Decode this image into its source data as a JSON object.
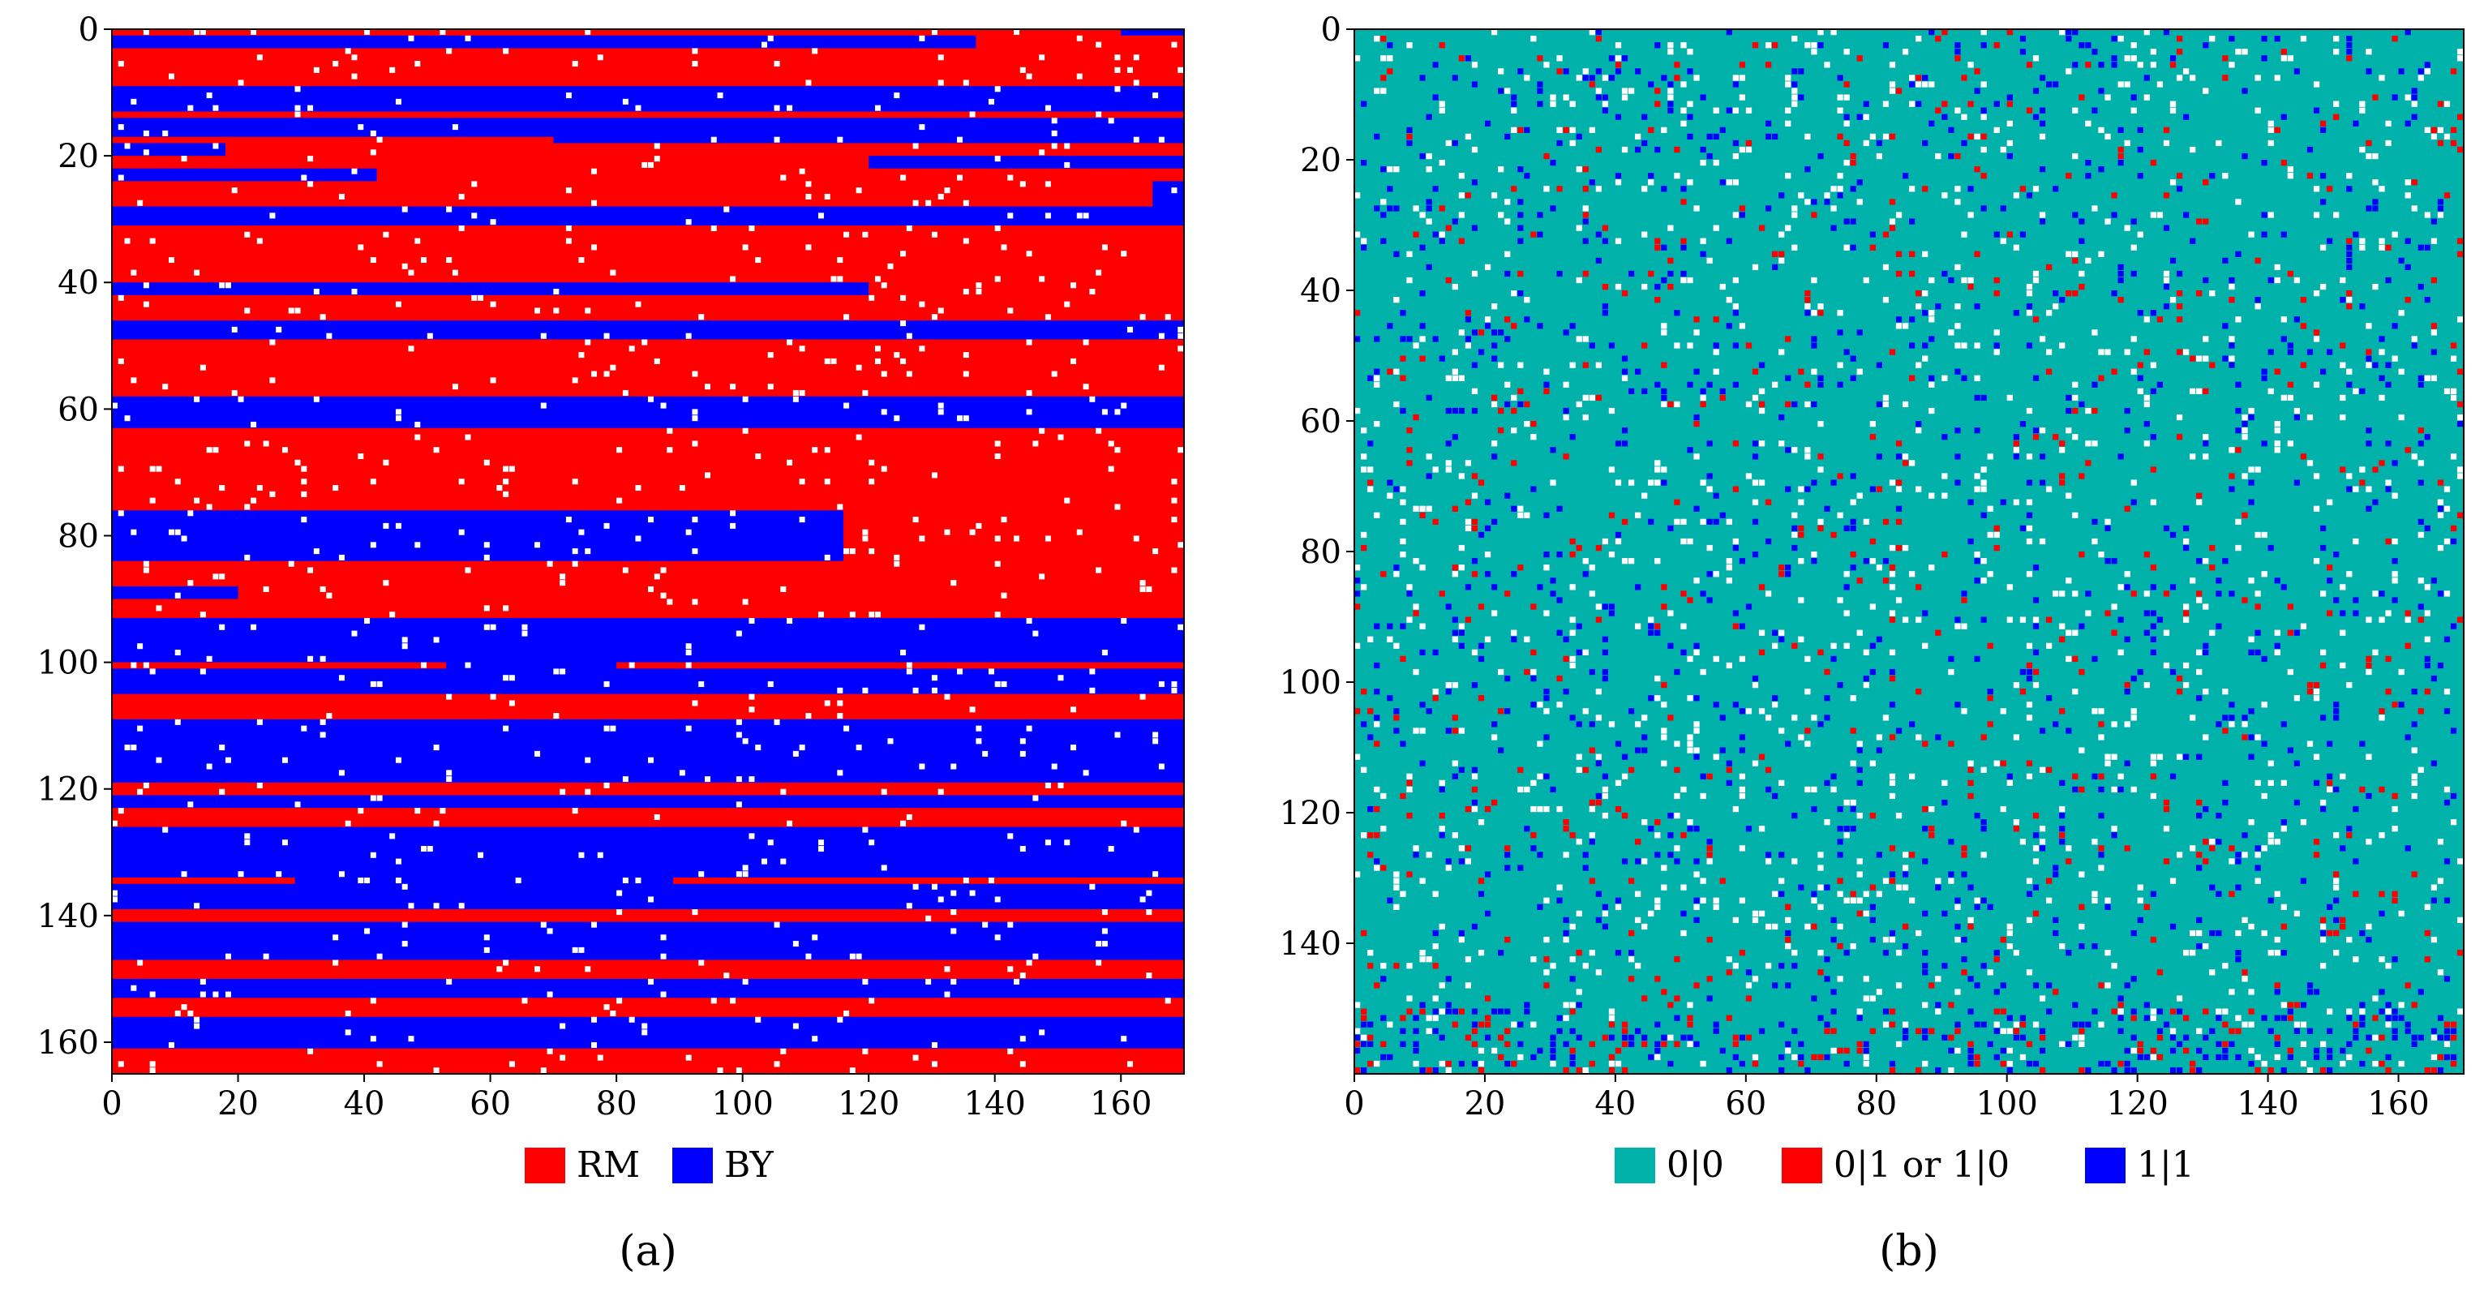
{
  "chart_data": [
    {
      "type": "heatmap",
      "panel": "a",
      "caption": "(a)",
      "title": "",
      "xlabel": "",
      "ylabel": "",
      "xlim": [
        0,
        170
      ],
      "ylim": [
        0,
        165
      ],
      "y_inverted": true,
      "x_ticks": [
        0,
        20,
        40,
        60,
        80,
        100,
        120,
        140,
        160
      ],
      "y_ticks": [
        0,
        20,
        40,
        60,
        80,
        100,
        120,
        140,
        160
      ],
      "colors": {
        "RM": "#ff0000",
        "BY": "#0000ff",
        "missing": "#ffffff"
      },
      "legend": [
        {
          "label": "RM",
          "color": "#ff0000"
        },
        {
          "label": "BY",
          "color": "#0000ff"
        }
      ],
      "legend_position": "bottom-center",
      "missing_fraction": 0.03,
      "bands": [
        {
          "y0": 0,
          "y1": 1,
          "breaks": [
            {
              "x": 160,
              "value": "BY"
            }
          ],
          "start": "RM"
        },
        {
          "y0": 1,
          "y1": 3,
          "breaks": [
            {
              "x": 137,
              "value": "RM"
            }
          ],
          "start": "BY"
        },
        {
          "y0": 3,
          "y1": 9,
          "breaks": [],
          "start": "RM"
        },
        {
          "y0": 9,
          "y1": 13,
          "breaks": [],
          "start": "BY"
        },
        {
          "y0": 13,
          "y1": 14,
          "breaks": [],
          "start": "RM"
        },
        {
          "y0": 14,
          "y1": 17,
          "breaks": [],
          "start": "BY"
        },
        {
          "y0": 17,
          "y1": 18,
          "breaks": [
            {
              "x": 70,
              "value": "BY"
            }
          ],
          "start": "RM"
        },
        {
          "y0": 18,
          "y1": 20,
          "breaks": [
            {
              "x": 18,
              "value": "RM"
            }
          ],
          "start": "BY"
        },
        {
          "y0": 20,
          "y1": 22,
          "breaks": [
            {
              "x": 120,
              "value": "BY"
            }
          ],
          "start": "RM"
        },
        {
          "y0": 22,
          "y1": 24,
          "breaks": [
            {
              "x": 42,
              "value": "RM"
            }
          ],
          "start": "BY"
        },
        {
          "y0": 24,
          "y1": 28,
          "breaks": [
            {
              "x": 165,
              "value": "BY"
            }
          ],
          "start": "RM"
        },
        {
          "y0": 28,
          "y1": 31,
          "breaks": [],
          "start": "BY"
        },
        {
          "y0": 31,
          "y1": 40,
          "breaks": [],
          "start": "RM"
        },
        {
          "y0": 40,
          "y1": 42,
          "breaks": [
            {
              "x": 120,
              "value": "RM"
            }
          ],
          "start": "BY"
        },
        {
          "y0": 42,
          "y1": 46,
          "breaks": [],
          "start": "RM"
        },
        {
          "y0": 46,
          "y1": 49,
          "breaks": [],
          "start": "BY"
        },
        {
          "y0": 49,
          "y1": 58,
          "breaks": [],
          "start": "RM"
        },
        {
          "y0": 58,
          "y1": 63,
          "breaks": [],
          "start": "BY"
        },
        {
          "y0": 63,
          "y1": 76,
          "breaks": [],
          "start": "RM"
        },
        {
          "y0": 76,
          "y1": 84,
          "breaks": [
            {
              "x": 116,
              "value": "RM"
            }
          ],
          "start": "BY"
        },
        {
          "y0": 84,
          "y1": 88,
          "breaks": [],
          "start": "RM"
        },
        {
          "y0": 88,
          "y1": 90,
          "breaks": [
            {
              "x": 20,
              "value": "RM"
            }
          ],
          "start": "BY"
        },
        {
          "y0": 90,
          "y1": 93,
          "breaks": [],
          "start": "RM"
        },
        {
          "y0": 93,
          "y1": 100,
          "breaks": [],
          "start": "BY"
        },
        {
          "y0": 100,
          "y1": 101,
          "breaks": [
            {
              "x": 53,
              "value": "BY"
            },
            {
              "x": 80,
              "value": "RM"
            }
          ],
          "start": "RM"
        },
        {
          "y0": 101,
          "y1": 105,
          "breaks": [],
          "start": "BY"
        },
        {
          "y0": 105,
          "y1": 109,
          "breaks": [],
          "start": "RM"
        },
        {
          "y0": 109,
          "y1": 119,
          "breaks": [],
          "start": "BY"
        },
        {
          "y0": 119,
          "y1": 121,
          "breaks": [],
          "start": "RM"
        },
        {
          "y0": 121,
          "y1": 123,
          "breaks": [],
          "start": "BY"
        },
        {
          "y0": 123,
          "y1": 126,
          "breaks": [],
          "start": "RM"
        },
        {
          "y0": 126,
          "y1": 134,
          "breaks": [],
          "start": "BY"
        },
        {
          "y0": 134,
          "y1": 135,
          "breaks": [
            {
              "x": 29,
              "value": "BY"
            },
            {
              "x": 89,
              "value": "RM"
            }
          ],
          "start": "RM"
        },
        {
          "y0": 135,
          "y1": 139,
          "breaks": [],
          "start": "BY"
        },
        {
          "y0": 139,
          "y1": 141,
          "breaks": [],
          "start": "RM"
        },
        {
          "y0": 141,
          "y1": 147,
          "breaks": [],
          "start": "BY"
        },
        {
          "y0": 147,
          "y1": 150,
          "breaks": [],
          "start": "RM"
        },
        {
          "y0": 150,
          "y1": 153,
          "breaks": [],
          "start": "BY"
        },
        {
          "y0": 153,
          "y1": 156,
          "breaks": [],
          "start": "RM"
        },
        {
          "y0": 156,
          "y1": 161,
          "breaks": [],
          "start": "BY"
        },
        {
          "y0": 161,
          "y1": 165,
          "breaks": [],
          "start": "RM"
        }
      ]
    },
    {
      "type": "heatmap",
      "panel": "b",
      "caption": "(b)",
      "title": "",
      "xlabel": "",
      "ylabel": "",
      "xlim": [
        0,
        170
      ],
      "ylim": [
        0,
        160
      ],
      "y_inverted": true,
      "x_ticks": [
        0,
        20,
        40,
        60,
        80,
        100,
        120,
        140,
        160
      ],
      "y_ticks": [
        0,
        20,
        40,
        60,
        80,
        100,
        120,
        140
      ],
      "colors": {
        "0|0": "#00b2a9",
        "0|1 or 1|0": "#ff0000",
        "1|1": "#0000ff",
        "missing": "#ffffff"
      },
      "legend": [
        {
          "label": "0|0",
          "color": "#00b2a9"
        },
        {
          "label": "0|1 or 1|0",
          "color": "#ff0000"
        },
        {
          "label": "1|1",
          "color": "#0000ff"
        }
      ],
      "legend_position": "bottom-center",
      "fractions": {
        "missing": 0.05,
        "0|1 or 1|0": 0.02,
        "1|1": 0.04
      },
      "dense_bottom_rows": [
        150,
        160
      ]
    }
  ]
}
